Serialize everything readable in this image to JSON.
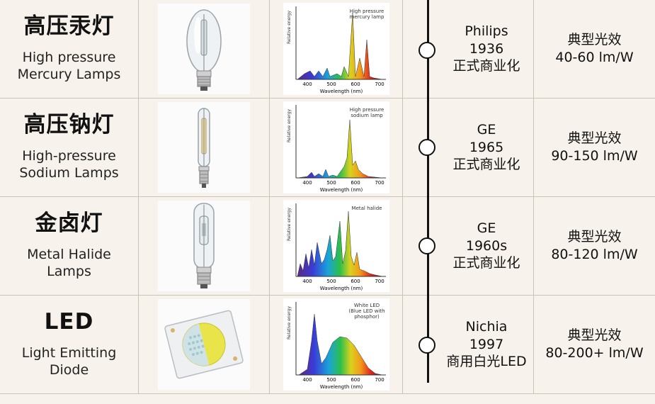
{
  "rows": [
    {
      "title_cn": "高压汞灯",
      "title_en_l1": "High pressure",
      "title_en_l2": "Mercury Lamps",
      "lamp_icon": "mercury-lamp-image",
      "spectrum_label_l1": "High pressure",
      "spectrum_label_l2": "mercury lamp",
      "ylabel": "Relative energy",
      "xlabel": "Wavelength (nm)",
      "ticks": [
        "400",
        "500",
        "600",
        "700"
      ],
      "maker": "Philips",
      "year": "1936",
      "milestone": "正式商业化",
      "eff_label": "典型光效",
      "eff_value": "40-60 lm/W"
    },
    {
      "title_cn": "高压钠灯",
      "title_en_l1": "High-pressure",
      "title_en_l2": "Sodium Lamps",
      "lamp_icon": "sodium-lamp-image",
      "spectrum_label_l1": "High pressure",
      "spectrum_label_l2": "sodium lamp",
      "ylabel": "Relative energy",
      "xlabel": "Wavelength (nm)",
      "ticks": [
        "400",
        "500",
        "600",
        "700"
      ],
      "maker": "GE",
      "year": "1965",
      "milestone": "正式商业化",
      "eff_label": "典型光效",
      "eff_value": "90-150 lm/W"
    },
    {
      "title_cn": "金卤灯",
      "title_en_l1": "Metal Halide",
      "title_en_l2": "Lamps",
      "lamp_icon": "metal-halide-lamp-image",
      "spectrum_label_l1": "Metal halide",
      "spectrum_label_l2": "",
      "ylabel": "Relative energy",
      "xlabel": "Wavelength (nm)",
      "ticks": [
        "400",
        "500",
        "600",
        "700"
      ],
      "maker": "GE",
      "year": "1960s",
      "milestone": "正式商业化",
      "eff_label": "典型光效",
      "eff_value": "80-120 lm/W"
    },
    {
      "title_cn": "LED",
      "title_en_l1": "Light Emitting",
      "title_en_l2": "Diode",
      "lamp_icon": "led-chip-image",
      "spectrum_label_l1": "White LED",
      "spectrum_label_l2": "(Blue LED with",
      "spectrum_label_l3": "phosphor)",
      "ylabel": "Relative energy",
      "xlabel": "Wavelength (nm)",
      "ticks": [
        "400",
        "500",
        "600",
        "700"
      ],
      "maker": "Nichia",
      "year": "1997",
      "milestone": "商用白光LED",
      "eff_label": "典型光效",
      "eff_value": "80-200+ lm/W"
    }
  ],
  "colors": {
    "background": "#f7f3ec",
    "timeline": "#111111",
    "divider": "#c9c3b8"
  }
}
